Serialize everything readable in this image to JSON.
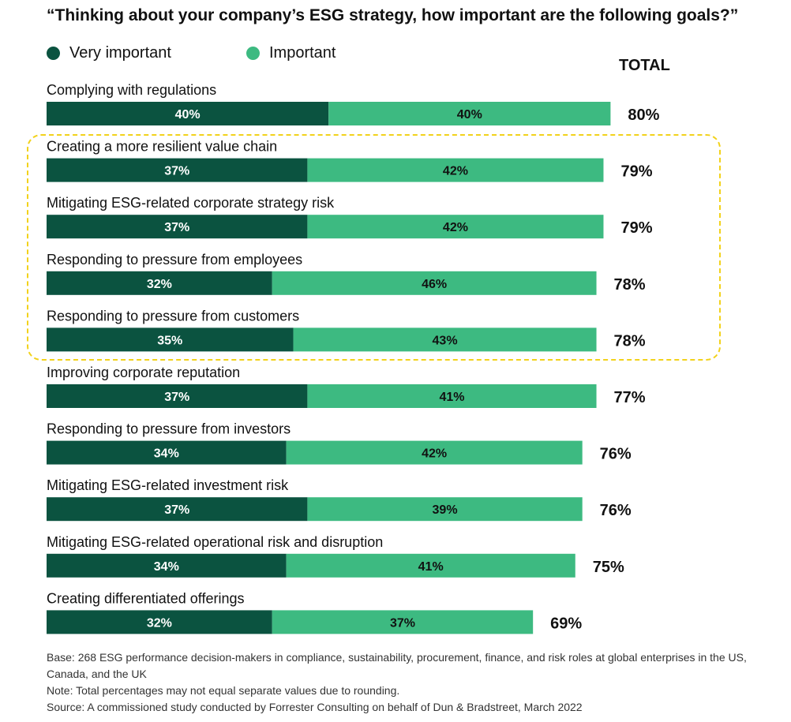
{
  "chart_data": {
    "type": "bar",
    "orientation": "horizontal",
    "stacked": true,
    "title": "“Thinking about your company’s ESG strategy, how important are the following goals?”",
    "total_label": "TOTAL",
    "categories": [
      "Complying with regulations",
      "Creating a more resilient value chain",
      "Mitigating ESG-related corporate strategy risk",
      "Responding to pressure from employees",
      "Responding to pressure from customers",
      "Improving corporate reputation",
      "Responding to pressure from investors",
      "Mitigating ESG-related investment risk",
      "Mitigating ESG-related operational risk and disruption",
      "Creating differentiated offerings"
    ],
    "series": [
      {
        "name": "Very important",
        "color": "#0b5340",
        "values": [
          40,
          37,
          37,
          32,
          35,
          37,
          34,
          37,
          34,
          32
        ]
      },
      {
        "name": "Important",
        "color": "#3dba81",
        "values": [
          40,
          42,
          42,
          46,
          43,
          41,
          42,
          39,
          41,
          37
        ]
      }
    ],
    "totals": [
      80,
      79,
      79,
      78,
      78,
      77,
      76,
      76,
      75,
      69
    ],
    "value_suffix": "%",
    "highlighted_categories": [
      1,
      2,
      3,
      4
    ],
    "highlight_color": "#f2d21b",
    "legend_position": "top-left",
    "grid": false
  },
  "footnotes": {
    "base": "Base: 268 ESG performance decision-makers in compliance, sustainability, procurement, finance, and risk roles at global enterprises in the US, Canada, and the UK",
    "note": "Note: Total percentages may not equal separate values due to rounding.",
    "source": "Source: A commissioned study conducted by Forrester Consulting on behalf of Dun & Bradstreet, March 2022"
  }
}
